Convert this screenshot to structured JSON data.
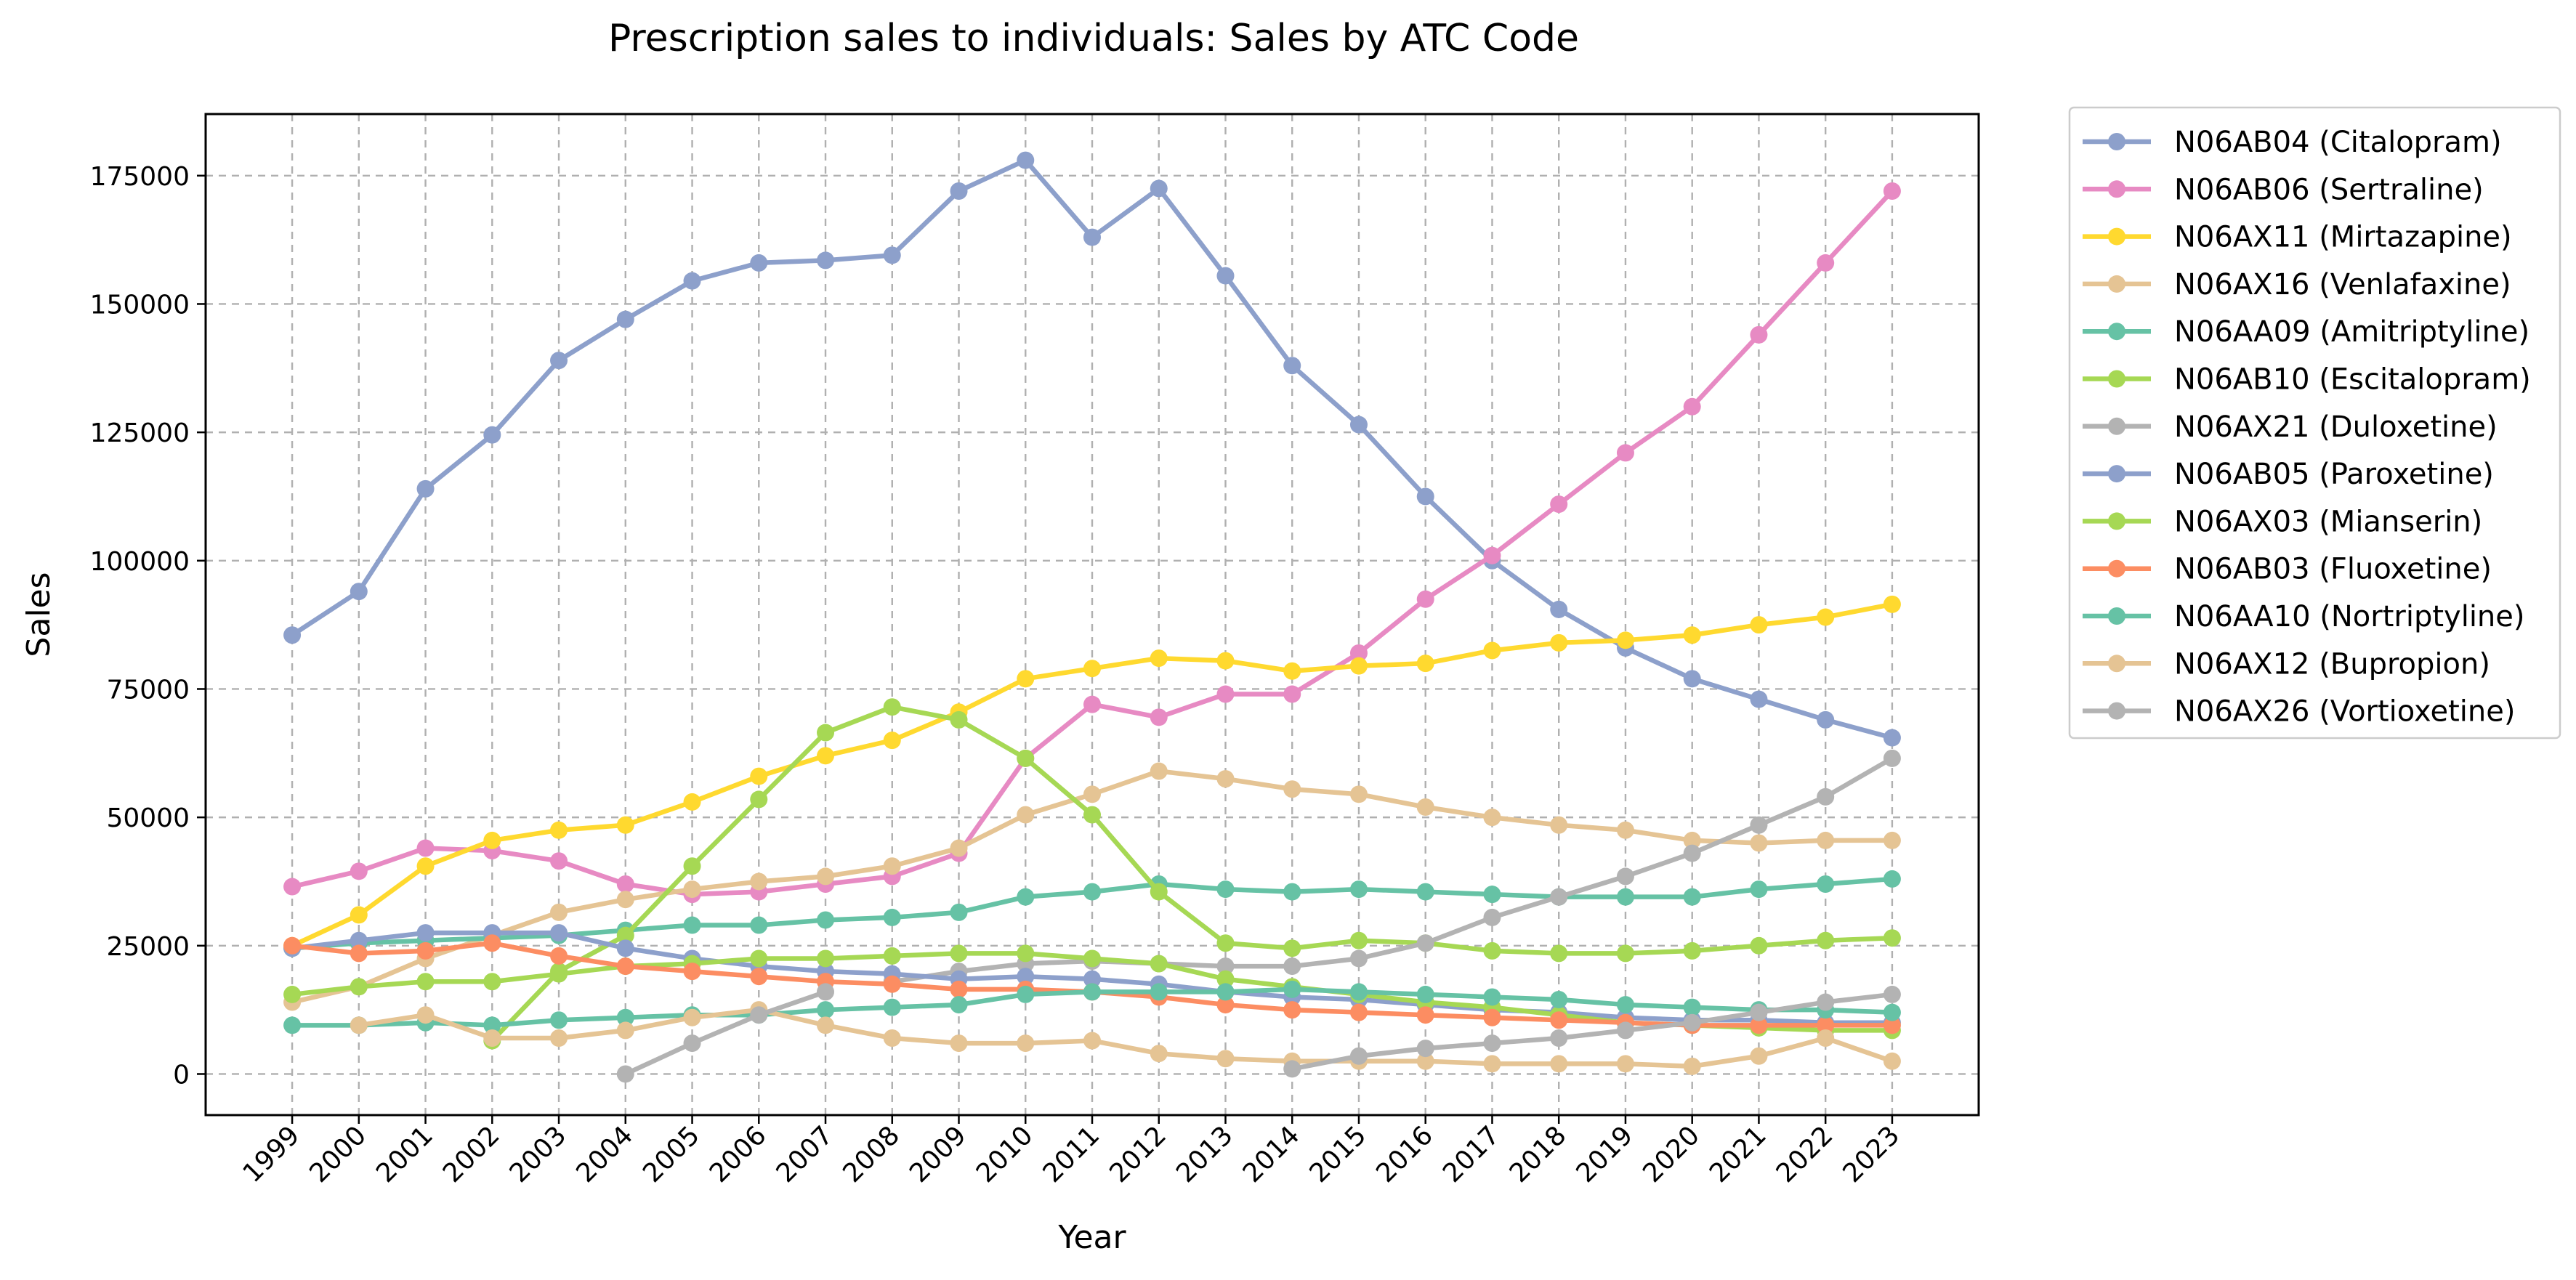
{
  "chart_data": {
    "type": "line",
    "title": "Prescription sales to individuals: Sales by ATC Code",
    "xlabel": "Year",
    "ylabel": "Sales",
    "ylim": [
      -8000,
      187000
    ],
    "yticks": [
      0,
      25000,
      50000,
      75000,
      100000,
      125000,
      150000,
      175000
    ],
    "grid": true,
    "legend_position": "outside-right",
    "x": [
      1999,
      2000,
      2001,
      2002,
      2003,
      2004,
      2005,
      2006,
      2007,
      2008,
      2009,
      2010,
      2011,
      2012,
      2013,
      2014,
      2015,
      2016,
      2017,
      2018,
      2019,
      2020,
      2021,
      2022,
      2023
    ],
    "series": [
      {
        "name": "N06AB04 (Citalopram)",
        "color": "#8da0cb",
        "values": [
          85500,
          94000,
          114000,
          124500,
          139000,
          147000,
          154500,
          158000,
          158500,
          159500,
          172000,
          178000,
          163000,
          172500,
          155500,
          138000,
          126500,
          112500,
          100000,
          90500,
          83000,
          77000,
          73000,
          69000,
          65500
        ]
      },
      {
        "name": "N06AB06 (Sertraline)",
        "color": "#e78ac3",
        "values": [
          36500,
          39500,
          44000,
          43500,
          41500,
          37000,
          35000,
          35500,
          37000,
          38500,
          43000,
          61500,
          72000,
          69500,
          74000,
          74000,
          82000,
          92500,
          101000,
          111000,
          121000,
          130000,
          144000,
          158000,
          172000
        ]
      },
      {
        "name": "N06AX11 (Mirtazapine)",
        "color": "#ffd92f",
        "values": [
          25000,
          31000,
          40500,
          45500,
          47500,
          48500,
          53000,
          58000,
          62000,
          65000,
          70500,
          77000,
          79000,
          81000,
          80500,
          78500,
          79500,
          80000,
          82500,
          84000,
          84500,
          85500,
          87500,
          89000,
          91500
        ]
      },
      {
        "name": "N06AX16 (Venlafaxine)",
        "color": "#e5c494",
        "values": [
          14000,
          17000,
          22500,
          27000,
          31500,
          34000,
          36000,
          37500,
          38500,
          40500,
          44000,
          50500,
          54500,
          59000,
          57500,
          55500,
          54500,
          52000,
          50000,
          48500,
          47500,
          45500,
          45000,
          45500,
          45500
        ]
      },
      {
        "name": "N06AA09 (Amitriptyline)",
        "color": "#66c2a5",
        "values": [
          24500,
          25500,
          26000,
          26500,
          27000,
          28000,
          29000,
          29000,
          30000,
          30500,
          31500,
          34500,
          35500,
          37000,
          36000,
          35500,
          36000,
          35500,
          35000,
          34500,
          34500,
          34500,
          36000,
          37000,
          38000
        ]
      },
      {
        "name": "N06AB10 (Escitalopram)",
        "color": "#a6d854",
        "values": [
          null,
          null,
          null,
          6500,
          20000,
          27000,
          40500,
          53500,
          66500,
          71500,
          69000,
          61500,
          50500,
          35500,
          25500,
          24500,
          26000,
          25500,
          24000,
          23500,
          23500,
          24000,
          25000,
          26000,
          26500
        ]
      },
      {
        "name": "N06AX21 (Duloxetine)",
        "color": "#b3b3b3",
        "values": [
          null,
          null,
          null,
          null,
          null,
          null,
          null,
          null,
          null,
          18000,
          20000,
          21500,
          22000,
          21500,
          21000,
          21000,
          22500,
          25500,
          30500,
          34500,
          38500,
          43000,
          48500,
          54000,
          61500
        ]
      },
      {
        "name": "N06AB05 (Paroxetine)",
        "color": "#8da0cb",
        "values": [
          24500,
          26000,
          27500,
          27500,
          27500,
          24500,
          22500,
          21000,
          20000,
          19500,
          18500,
          19000,
          18500,
          17500,
          16000,
          15000,
          14500,
          13500,
          12500,
          12000,
          11000,
          10500,
          10500,
          10000,
          10000
        ]
      },
      {
        "name": "N06AX03 (Mianserin)",
        "color": "#a6d854",
        "values": [
          15500,
          17000,
          18000,
          18000,
          19500,
          21000,
          21500,
          22500,
          22500,
          23000,
          23500,
          23500,
          22500,
          21500,
          18500,
          17000,
          15500,
          14000,
          13000,
          11500,
          10000,
          9500,
          9000,
          8500,
          8500
        ]
      },
      {
        "name": "N06AB03 (Fluoxetine)",
        "color": "#fc8d62",
        "values": [
          25000,
          23500,
          24000,
          25500,
          23000,
          21000,
          20000,
          19000,
          18000,
          17500,
          16500,
          16500,
          16000,
          15000,
          13500,
          12500,
          12000,
          11500,
          11000,
          10500,
          10000,
          9500,
          9500,
          9500,
          9500
        ]
      },
      {
        "name": "N06AA10 (Nortriptyline)",
        "color": "#66c2a5",
        "values": [
          9500,
          9500,
          10000,
          9500,
          10500,
          11000,
          11500,
          11500,
          12500,
          13000,
          13500,
          15500,
          16000,
          16000,
          16000,
          16500,
          16000,
          15500,
          15000,
          14500,
          13500,
          13000,
          12500,
          12500,
          12000
        ]
      },
      {
        "name": "N06AX12 (Bupropion)",
        "color": "#e5c494",
        "values": [
          null,
          9500,
          11500,
          7000,
          7000,
          8500,
          11000,
          12500,
          9500,
          7000,
          6000,
          6000,
          6500,
          4000,
          3000,
          2500,
          2500,
          2500,
          2000,
          2000,
          2000,
          1500,
          3500,
          7000,
          2500
        ]
      },
      {
        "name": "N06AX26 (Vortioxetine)",
        "color": "#b3b3b3",
        "values": [
          null,
          null,
          null,
          null,
          null,
          0,
          6000,
          11500,
          16000,
          null,
          null,
          null,
          null,
          null,
          null,
          1000,
          3500,
          5000,
          6000,
          7000,
          8500,
          10000,
          12000,
          14000,
          15500
        ]
      }
    ]
  }
}
